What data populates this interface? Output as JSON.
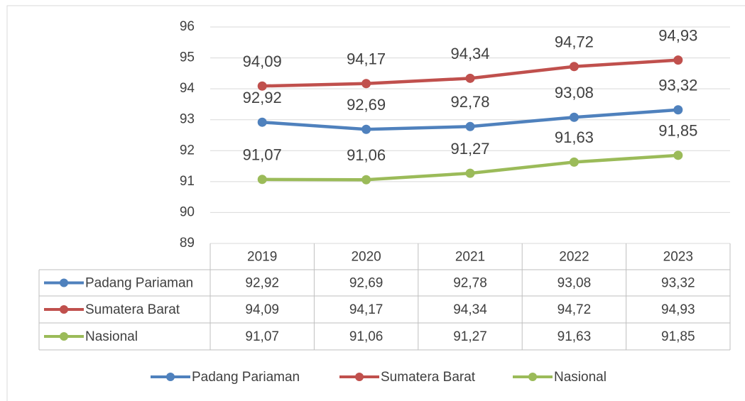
{
  "chart_data": {
    "type": "line",
    "categories": [
      "2019",
      "2020",
      "2021",
      "2022",
      "2023"
    ],
    "series": [
      {
        "name": "Padang Pariaman",
        "color": "#4f81bd",
        "values": [
          92.92,
          92.69,
          92.78,
          93.08,
          93.32
        ],
        "value_labels": [
          "92,92",
          "92,69",
          "92,78",
          "93,08",
          "93,32"
        ]
      },
      {
        "name": "Sumatera Barat",
        "color": "#c0504d",
        "values": [
          94.09,
          94.17,
          94.34,
          94.72,
          94.93
        ],
        "value_labels": [
          "94,09",
          "94,17",
          "94,34",
          "94,72",
          "94,93"
        ]
      },
      {
        "name": "Nasional",
        "color": "#9bbb59",
        "values": [
          91.07,
          91.06,
          91.27,
          91.63,
          91.85
        ],
        "value_labels": [
          "91,07",
          "91,06",
          "91,27",
          "91,63",
          "91,85"
        ]
      }
    ],
    "ylim": [
      89,
      96
    ],
    "yticks": [
      89,
      90,
      91,
      92,
      93,
      94,
      95,
      96
    ],
    "grid": true,
    "data_table": true,
    "legend": "bottom"
  }
}
